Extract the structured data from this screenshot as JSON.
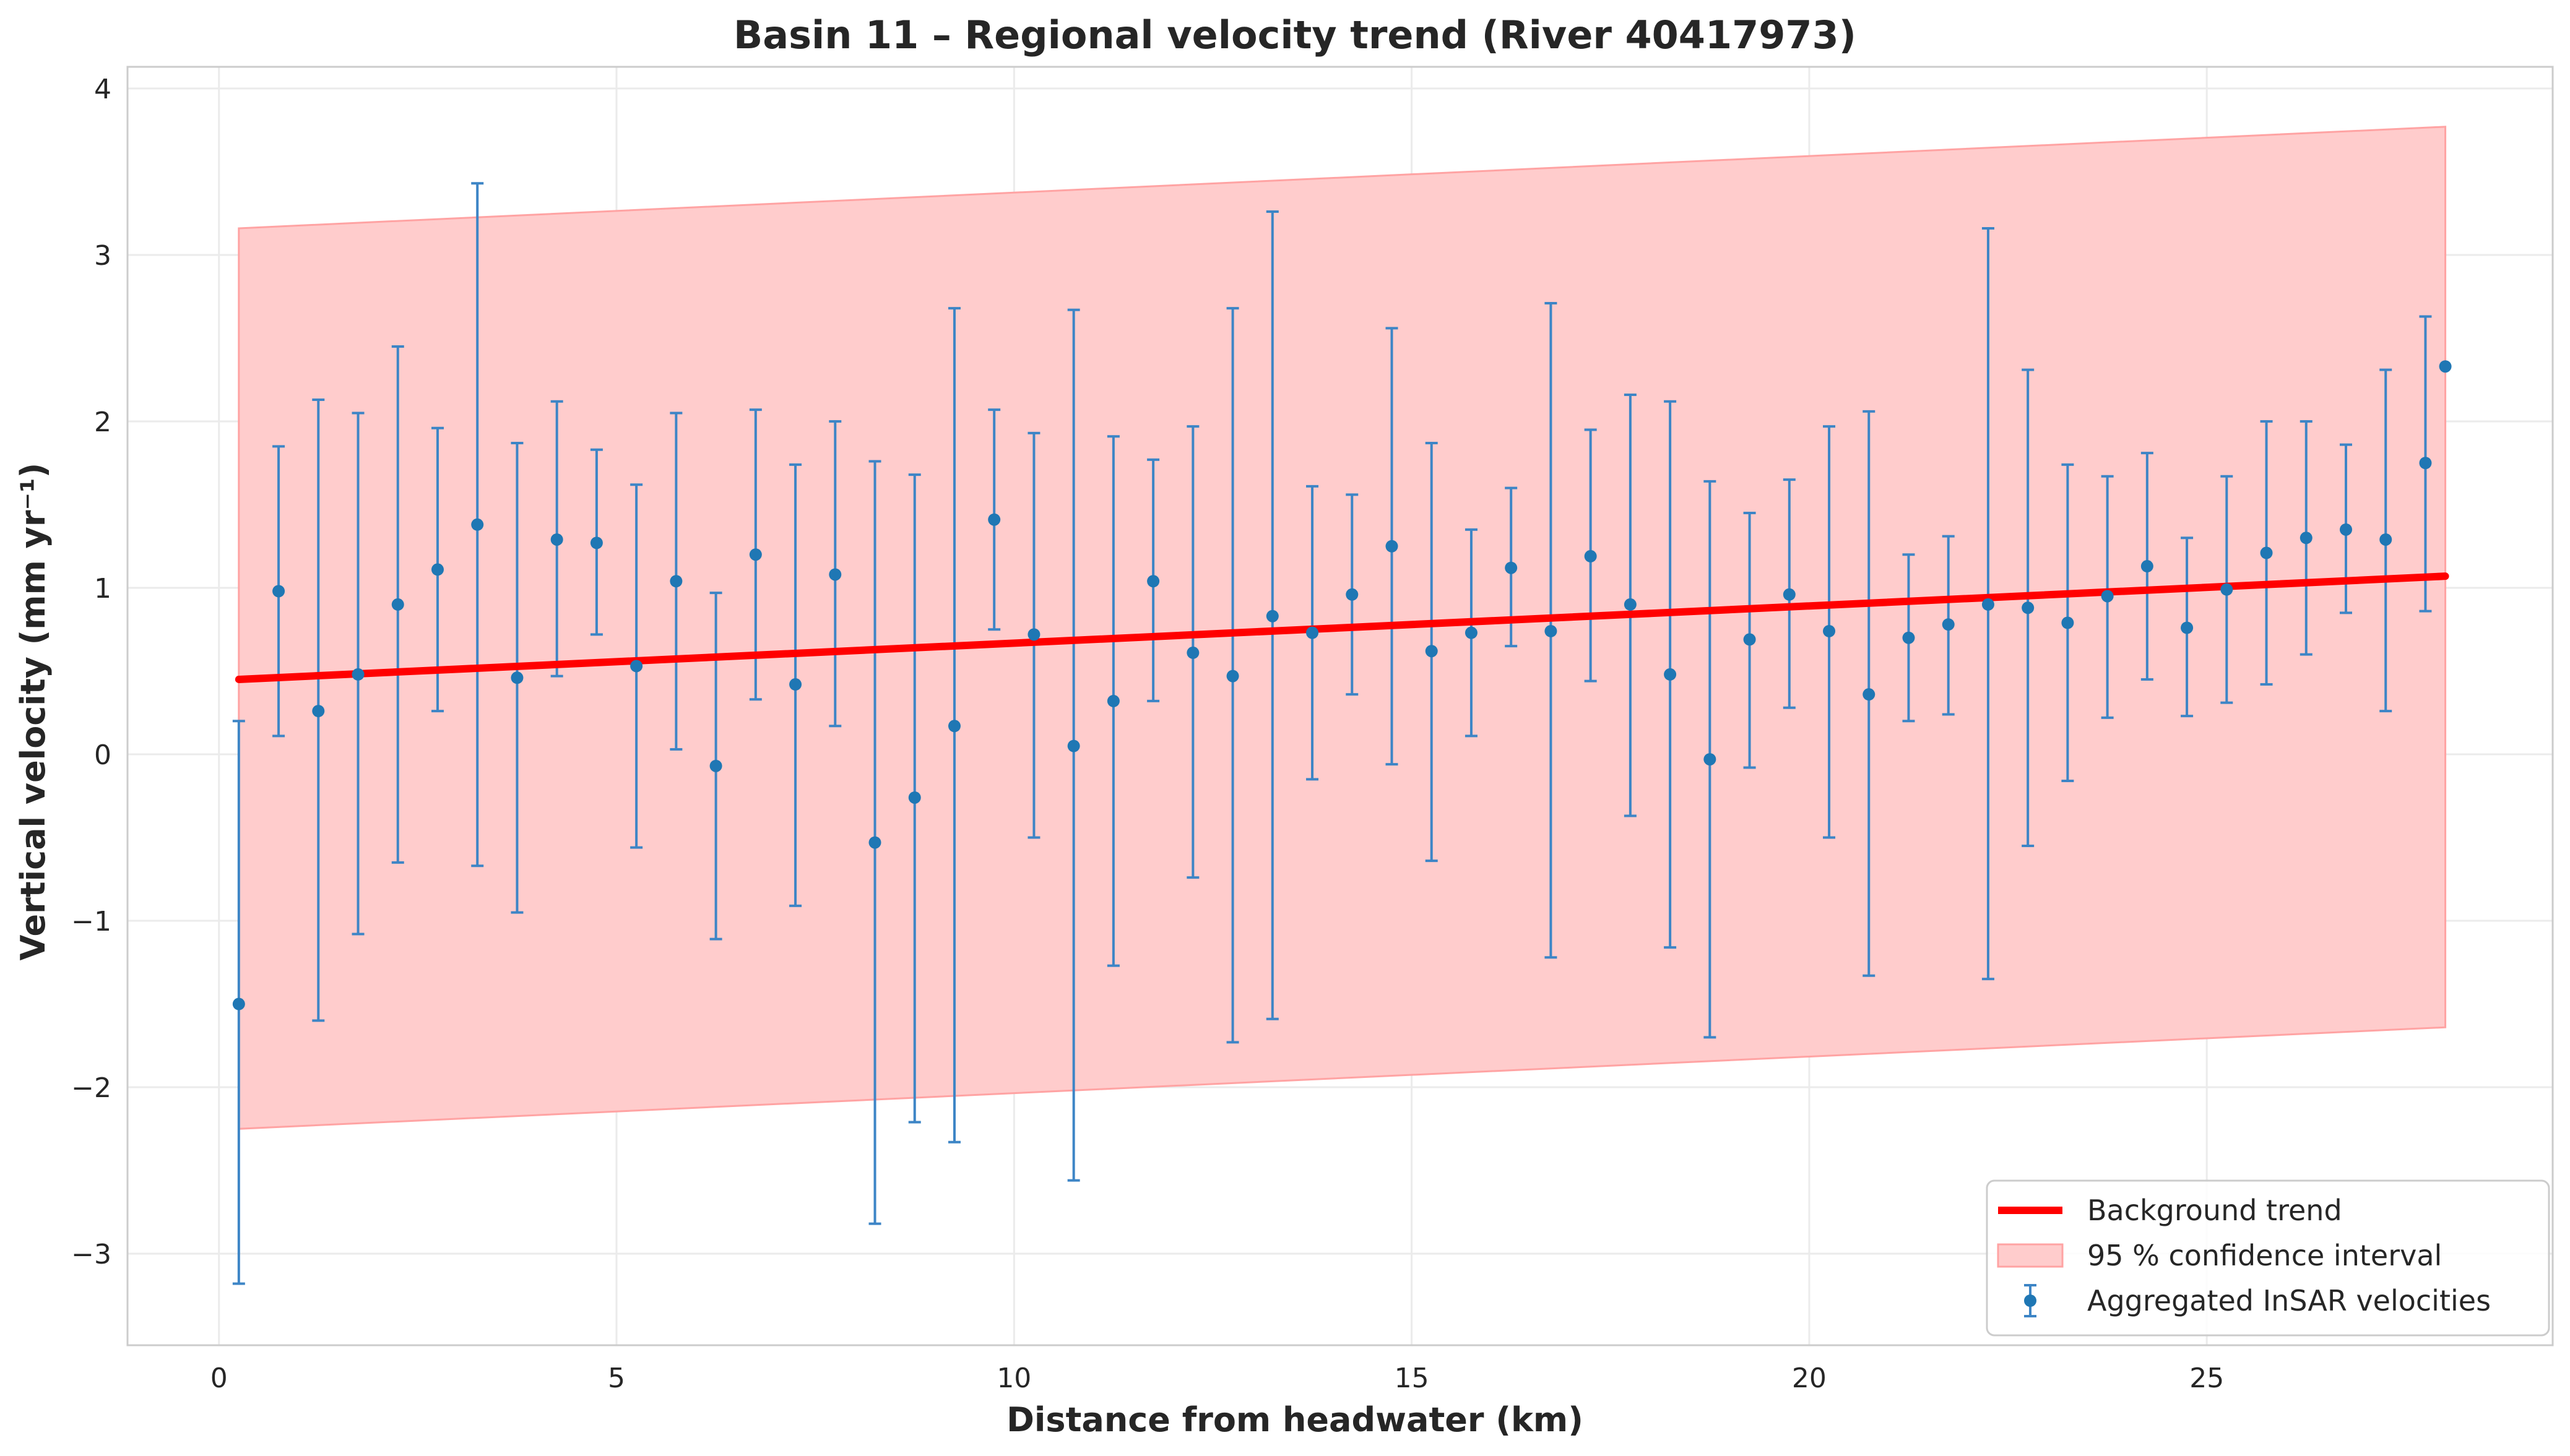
{
  "chart_data": {
    "type": "scatter",
    "title": "Basin 11 – Regional velocity trend (River 40417973)",
    "xlabel": "Distance from headwater (km)",
    "ylabel": "Vertical velocity (mm yr⁻¹)",
    "xlim": [
      -1.15,
      29.35
    ],
    "ylim": [
      -3.55,
      4.13
    ],
    "xticks": [
      0,
      5,
      10,
      15,
      20,
      25
    ],
    "xtick_labels": [
      "0",
      "5",
      "10",
      "15",
      "20",
      "25"
    ],
    "yticks": [
      -3,
      -2,
      -1,
      0,
      1,
      2,
      3,
      4
    ],
    "ytick_labels": [
      "−3",
      "−2",
      "−1",
      "0",
      "1",
      "2",
      "3",
      "4"
    ],
    "grid": true,
    "legend_position": "lower-right",
    "legend": {
      "trend": "Background trend",
      "ci": "95 % confidence interval",
      "points": "Aggregated InSAR velocities"
    },
    "colors": {
      "trend": "#ff0000",
      "ci_fill": "#ffcccc",
      "ci_edge": "#ffa3a3",
      "points": "#1f77b4",
      "errorbar": "#3d85c6",
      "grid": "#ebebeb",
      "axes_edge": "#cccccc",
      "text": "#262626"
    },
    "trend": {
      "x": [
        0.25,
        28.0
      ],
      "y": [
        0.45,
        1.07
      ]
    },
    "confidence_interval": {
      "x": [
        0.25,
        28.0
      ],
      "lower": [
        -2.25,
        -1.64
      ],
      "upper": [
        3.16,
        3.77
      ]
    },
    "points": {
      "x": [
        0.25,
        0.75,
        1.25,
        1.75,
        2.25,
        2.75,
        3.25,
        3.75,
        4.25,
        4.75,
        5.25,
        5.75,
        6.25,
        6.75,
        7.25,
        7.75,
        8.25,
        8.75,
        9.25,
        9.75,
        10.25,
        10.75,
        11.25,
        11.75,
        12.25,
        12.75,
        13.25,
        13.75,
        14.25,
        14.75,
        15.25,
        15.75,
        16.25,
        16.75,
        17.25,
        17.75,
        18.25,
        18.75,
        19.25,
        19.75,
        20.25,
        20.75,
        21.25,
        21.75,
        22.25,
        22.75,
        23.25,
        23.75,
        24.25,
        24.75,
        25.25,
        25.75,
        26.25,
        26.75,
        27.25,
        27.75,
        28.0
      ],
      "y": [
        -1.5,
        0.98,
        0.26,
        0.48,
        0.9,
        1.11,
        1.38,
        0.46,
        1.29,
        1.27,
        0.53,
        1.04,
        -0.07,
        1.2,
        0.42,
        1.08,
        -0.53,
        -0.26,
        0.17,
        1.41,
        0.72,
        0.05,
        0.32,
        1.04,
        0.61,
        0.47,
        0.83,
        0.73,
        0.96,
        1.25,
        0.62,
        0.73,
        1.12,
        0.74,
        1.19,
        0.9,
        0.48,
        -0.03,
        0.69,
        0.96,
        0.74,
        0.36,
        0.7,
        0.78,
        0.9,
        0.88,
        0.79,
        0.95,
        1.13,
        0.76,
        0.99,
        1.21,
        1.3,
        1.35,
        1.29,
        1.75,
        2.33
      ],
      "err_low": [
        -3.18,
        0.11,
        -1.6,
        -1.08,
        -0.65,
        0.26,
        -0.67,
        -0.95,
        0.47,
        0.72,
        -0.56,
        0.03,
        -1.11,
        0.33,
        -0.91,
        0.17,
        -2.82,
        -2.21,
        -2.33,
        0.75,
        -0.5,
        -2.56,
        -1.27,
        0.32,
        -0.74,
        -1.73,
        -1.59,
        -0.15,
        0.36,
        -0.06,
        -0.64,
        0.11,
        0.65,
        -1.22,
        0.44,
        -0.37,
        -1.16,
        -1.7,
        -0.08,
        0.28,
        -0.5,
        -1.33,
        0.2,
        0.24,
        -1.35,
        -0.55,
        -0.16,
        0.22,
        0.45,
        0.23,
        0.31,
        0.42,
        0.6,
        0.85,
        0.26,
        0.86,
        null
      ],
      "err_high": [
        0.2,
        1.85,
        2.13,
        2.05,
        2.45,
        1.96,
        3.43,
        1.87,
        2.12,
        1.83,
        1.62,
        2.05,
        0.97,
        2.07,
        1.74,
        2.0,
        1.76,
        1.68,
        2.68,
        2.07,
        1.93,
        2.67,
        1.91,
        1.77,
        1.97,
        2.68,
        3.26,
        1.61,
        1.56,
        2.56,
        1.87,
        1.35,
        1.6,
        2.71,
        1.95,
        2.16,
        2.12,
        1.64,
        1.45,
        1.65,
        1.97,
        2.06,
        1.2,
        1.31,
        3.16,
        2.31,
        1.74,
        1.67,
        1.81,
        1.3,
        1.67,
        2.0,
        2.0,
        1.86,
        2.31,
        2.63,
        null
      ]
    }
  }
}
